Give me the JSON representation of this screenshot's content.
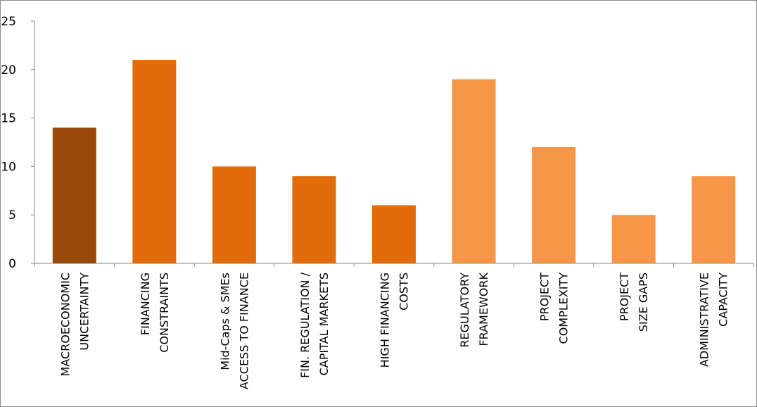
{
  "chart_data": {
    "type": "bar",
    "title": "",
    "xlabel": "",
    "ylabel": "",
    "ylim": [
      0,
      25
    ],
    "yticks": [
      0,
      5,
      10,
      15,
      20,
      25
    ],
    "grid": false,
    "categories": [
      [
        "MACROECONOMIC",
        "UNCERTAINTY"
      ],
      [
        "FINANCING",
        "CONSTRAINTS"
      ],
      [
        "Mid-Caps & SMEs",
        "ACCESS TO FINANCE"
      ],
      [
        "FIN. REGULATION /",
        "CAPITAL MARKETS"
      ],
      [
        "HIGH FINANCING",
        "COSTS"
      ],
      [
        "REGULATORY",
        "FRAMEWORK"
      ],
      [
        "PROJECT",
        "COMPLEXITY"
      ],
      [
        "PROJECT",
        "SIZE GAPS"
      ],
      [
        "ADMINISTRATIVE",
        "CAPACITY"
      ]
    ],
    "values": [
      14,
      21,
      10,
      9,
      6,
      19,
      12,
      5,
      9
    ],
    "colors": [
      "#984807",
      "#e36c0a",
      "#e36c0a",
      "#e36c0a",
      "#e36c0a",
      "#f79646",
      "#f79646",
      "#f79646",
      "#f79646"
    ]
  }
}
